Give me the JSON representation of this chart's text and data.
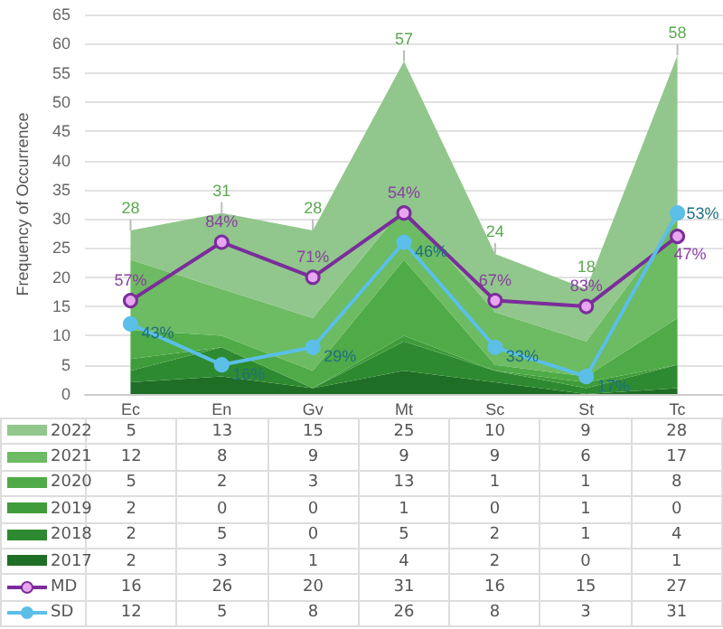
{
  "chart_data": {
    "type": "area",
    "ylabel": "Frequency of Occurrence",
    "categories": [
      "Ec",
      "En",
      "Gv",
      "Mt",
      "Sc",
      "St",
      "Tc"
    ],
    "stacked": true,
    "ylim": [
      0,
      65
    ],
    "yticks": [
      0,
      5,
      10,
      15,
      20,
      25,
      30,
      35,
      40,
      45,
      50,
      55,
      60,
      65
    ],
    "grid": "y",
    "data_labels": true,
    "legend": "bottom",
    "totals": [
      "28",
      "31",
      "28",
      "57",
      "24",
      "18",
      "58"
    ],
    "series": [
      {
        "name": "2017",
        "color": "#1f6e25",
        "values": [
          2,
          3,
          1,
          4,
          2,
          0,
          1
        ]
      },
      {
        "name": "2018",
        "color": "#2e8a30",
        "values": [
          2,
          5,
          0,
          5,
          2,
          1,
          4
        ]
      },
      {
        "name": "2019",
        "color": "#3f9c3a",
        "values": [
          2,
          0,
          0,
          1,
          0,
          1,
          0
        ]
      },
      {
        "name": "2020",
        "color": "#4fab47",
        "values": [
          5,
          2,
          3,
          13,
          1,
          1,
          8
        ]
      },
      {
        "name": "2021",
        "color": "#6dbb62",
        "values": [
          12,
          8,
          9,
          9,
          9,
          6,
          17
        ]
      },
      {
        "name": "2022",
        "color": "#91c78c",
        "values": [
          5,
          13,
          15,
          25,
          10,
          9,
          28
        ]
      },
      {
        "name": "MD",
        "type": "line",
        "color": "#7b2d9b",
        "marker": "circle",
        "values": [
          16,
          26,
          20,
          31,
          16,
          15,
          27
        ]
      },
      {
        "name": "SD",
        "type": "line",
        "color": "#5bbfe8",
        "marker": "circle",
        "values": [
          12,
          5,
          8,
          26,
          8,
          3,
          31
        ]
      }
    ],
    "annotations": [
      {
        "text": "57%",
        "x": "Ec",
        "y": 16
      },
      {
        "text": "84%",
        "x": "En",
        "y": 26
      },
      {
        "text": "71%",
        "x": "Gv",
        "y": 20
      },
      {
        "text": "54%",
        "x": "Mt",
        "y": 31
      },
      {
        "text": "67%",
        "x": "Sc",
        "y": 16
      },
      {
        "text": "83%",
        "x": "St",
        "y": 15
      },
      {
        "text": "47%",
        "x": "Tc",
        "y": 27
      },
      {
        "text": "43%",
        "x": "Ec",
        "y": 12
      },
      {
        "text": "16%",
        "x": "En",
        "y": 5
      },
      {
        "text": "29%",
        "x": "Gv",
        "y": 8
      },
      {
        "text": "46%",
        "x": "Mt",
        "y": 26
      },
      {
        "text": "33%",
        "x": "Sc",
        "y": 8
      },
      {
        "text": "17%",
        "x": "St",
        "y": 3
      },
      {
        "text": "53%",
        "x": "Tc",
        "y": 31
      }
    ]
  }
}
